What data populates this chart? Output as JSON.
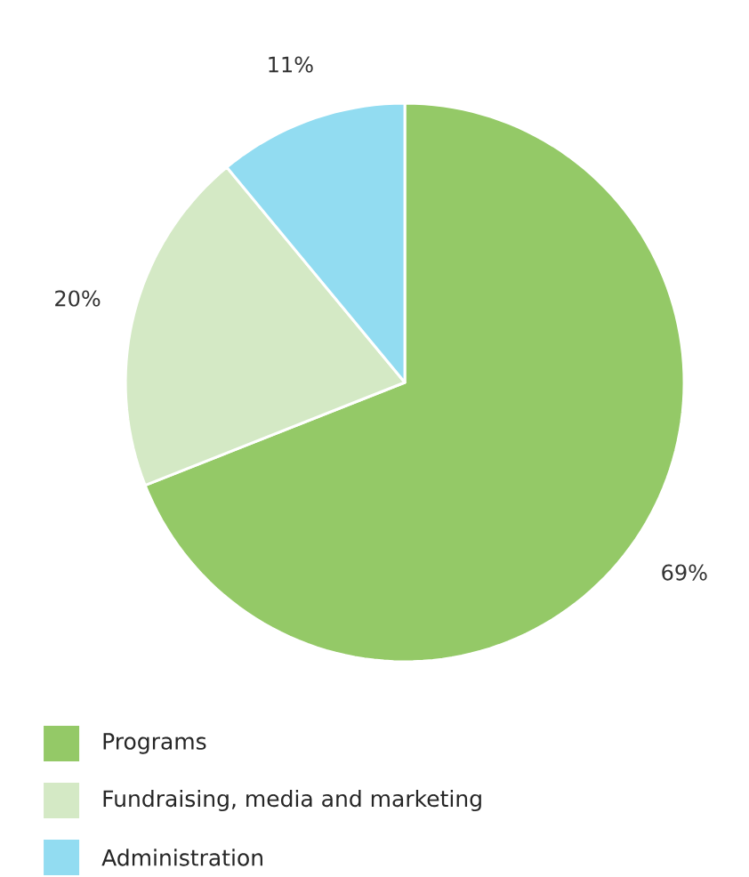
{
  "chart_data": {
    "type": "pie",
    "categories": [
      "Programs",
      "Fundraising, media and marketing",
      "Administration"
    ],
    "values": [
      69,
      20,
      11
    ],
    "value_labels": [
      "69%",
      "20%",
      "11%"
    ],
    "colors": [
      "#94c967",
      "#d4e9c5",
      "#92dcf1"
    ],
    "legend": "bottom left"
  }
}
